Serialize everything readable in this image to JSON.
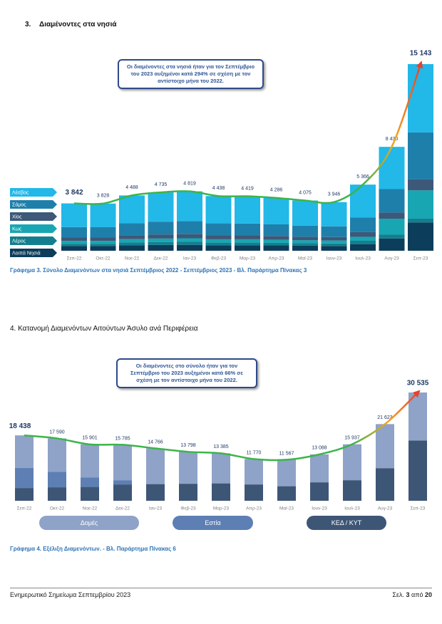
{
  "sections": [
    {
      "number": "3.",
      "title": "Διαμένοντες στα νησιά"
    },
    {
      "title": "4. Κατανομή Διαμενόντων Αιτούντων Άσυλο ανά Περιφέρεια"
    }
  ],
  "chart_data": [
    {
      "type": "bar",
      "stacked": true,
      "annotation": "Οι διαμένοντες στα νησιά ήταν για τον Σεπτέμβριο του 2023 αυξημένοι κατά 294% σε σχέση με τον αντίστοιχο μήνα του 2022.",
      "caption": "Γράφημα 3. Σύνολο Διαμενόντων στα νησιά Σεπτέμβριος 2022 - Σεπτέμβριος 2023 - Βλ. Παράρτημα Πίνακας 3",
      "legend": "left",
      "line_color": "#3cb44a",
      "categories": [
        "Σεπ-22",
        "Οκτ-22",
        "Νοε-22",
        "Δεκ-22",
        "Ιαν-23",
        "Φεβ-23",
        "Μαρ-23",
        "Απρ-23",
        "Μαϊ-23",
        "Ιουν-23",
        "Ιουλ-23",
        "Αυγ-23",
        "Σεπ-23"
      ],
      "series": [
        {
          "name": "Λέσβος",
          "color": "#22b8e8",
          "values": [
            1922,
            1918,
            2248,
            2375,
            2409,
            2218,
            2209,
            2146,
            2035,
            1966,
            2676,
            3430,
            5543
          ]
        },
        {
          "name": "Σάμος",
          "color": "#1f7fab",
          "values": [
            850,
            840,
            990,
            1040,
            1060,
            980,
            970,
            940,
            900,
            870,
            1180,
            1900,
            3800
          ]
        },
        {
          "name": "Χίος",
          "color": "#3d5878",
          "values": [
            270,
            270,
            310,
            330,
            340,
            310,
            310,
            300,
            290,
            280,
            380,
            500,
            900
          ]
        },
        {
          "name": "Κως",
          "color": "#18a6b3",
          "values": [
            230,
            230,
            270,
            280,
            290,
            270,
            270,
            260,
            240,
            240,
            320,
            1300,
            2300
          ]
        },
        {
          "name": "Λέρος",
          "color": "#137f8e",
          "values": [
            190,
            190,
            220,
            240,
            240,
            220,
            220,
            210,
            200,
            200,
            270,
            300,
            300
          ]
        },
        {
          "name": "Λοιπά Νησιά",
          "color": "#0c3d5b",
          "values": [
            380,
            380,
            450,
            470,
            480,
            440,
            440,
            430,
            410,
            390,
            540,
            1000,
            2300
          ]
        }
      ],
      "totals": [
        3842,
        3828,
        4488,
        4735,
        4819,
        4438,
        4419,
        4286,
        4075,
        3946,
        5366,
        8430,
        15143
      ],
      "value_labels": [
        "3 842",
        "3 828",
        "4 488",
        "4 735",
        "4 819",
        "4 438",
        "4 419",
        "4 286",
        "4 075",
        "3 946",
        "5 366",
        "8 430",
        "15 143"
      ]
    },
    {
      "type": "bar",
      "stacked": true,
      "annotation": "Οι διαμένοντες στο σύνολο ήταν για τον Σεπτέμβριο του 2023 αυξημένοι κατά 66% σε σχέση με τον αντίστοιχο μήνα του 2022.",
      "caption": "Γράφημα 4. Εξέλιξη Διαμενόντων. - Βλ. Παράρτημα Πίνακας 6",
      "legend": "bottom",
      "line_color": "#3cb44a",
      "categories": [
        "Σεπ-22",
        "Οκτ-22",
        "Νοε-22",
        "Δεκ-22",
        "Ιαν-23",
        "Φεβ-23",
        "Μαρ-23",
        "Απρ-23",
        "Μαϊ-23",
        "Ιουν-23",
        "Ιουλ-23",
        "Αυγ-23",
        "Σεπ-23"
      ],
      "series": [
        {
          "name": "Δομές",
          "color": "#8fa2c8",
          "values": [
            9138,
            9390,
            9301,
            9985,
            10066,
            8998,
            8485,
            7170,
            7467,
            7888,
            10137,
            12423,
            13535
          ]
        },
        {
          "name": "Εστία",
          "color": "#5d7fb3",
          "values": [
            5700,
            4400,
            2700,
            1200,
            0,
            0,
            0,
            0,
            0,
            0,
            0,
            0,
            0
          ]
        },
        {
          "name": "ΚΕΔ / ΚΥΤ",
          "color": "#3e5676",
          "values": [
            3600,
            3800,
            3900,
            4600,
            4700,
            4800,
            4900,
            4600,
            4100,
            5200,
            5800,
            9200,
            17000
          ]
        }
      ],
      "totals": [
        18438,
        17590,
        15901,
        15785,
        14766,
        13798,
        13385,
        11770,
        11567,
        13088,
        15937,
        21623,
        30535
      ],
      "value_labels": [
        "18 438",
        "17 590",
        "15 901",
        "15 785",
        "14 766",
        "13 798",
        "13 385",
        "11 770",
        "11 567",
        "13 088",
        "15 937",
        "21 623",
        "30 535"
      ]
    }
  ],
  "footer": {
    "left": "Ενημερωτικό Σημείωμα Σεπτεμβρίου 2023",
    "page_prefix": "Σελ.",
    "page": "3",
    "page_sep": "από",
    "pages": "20"
  }
}
